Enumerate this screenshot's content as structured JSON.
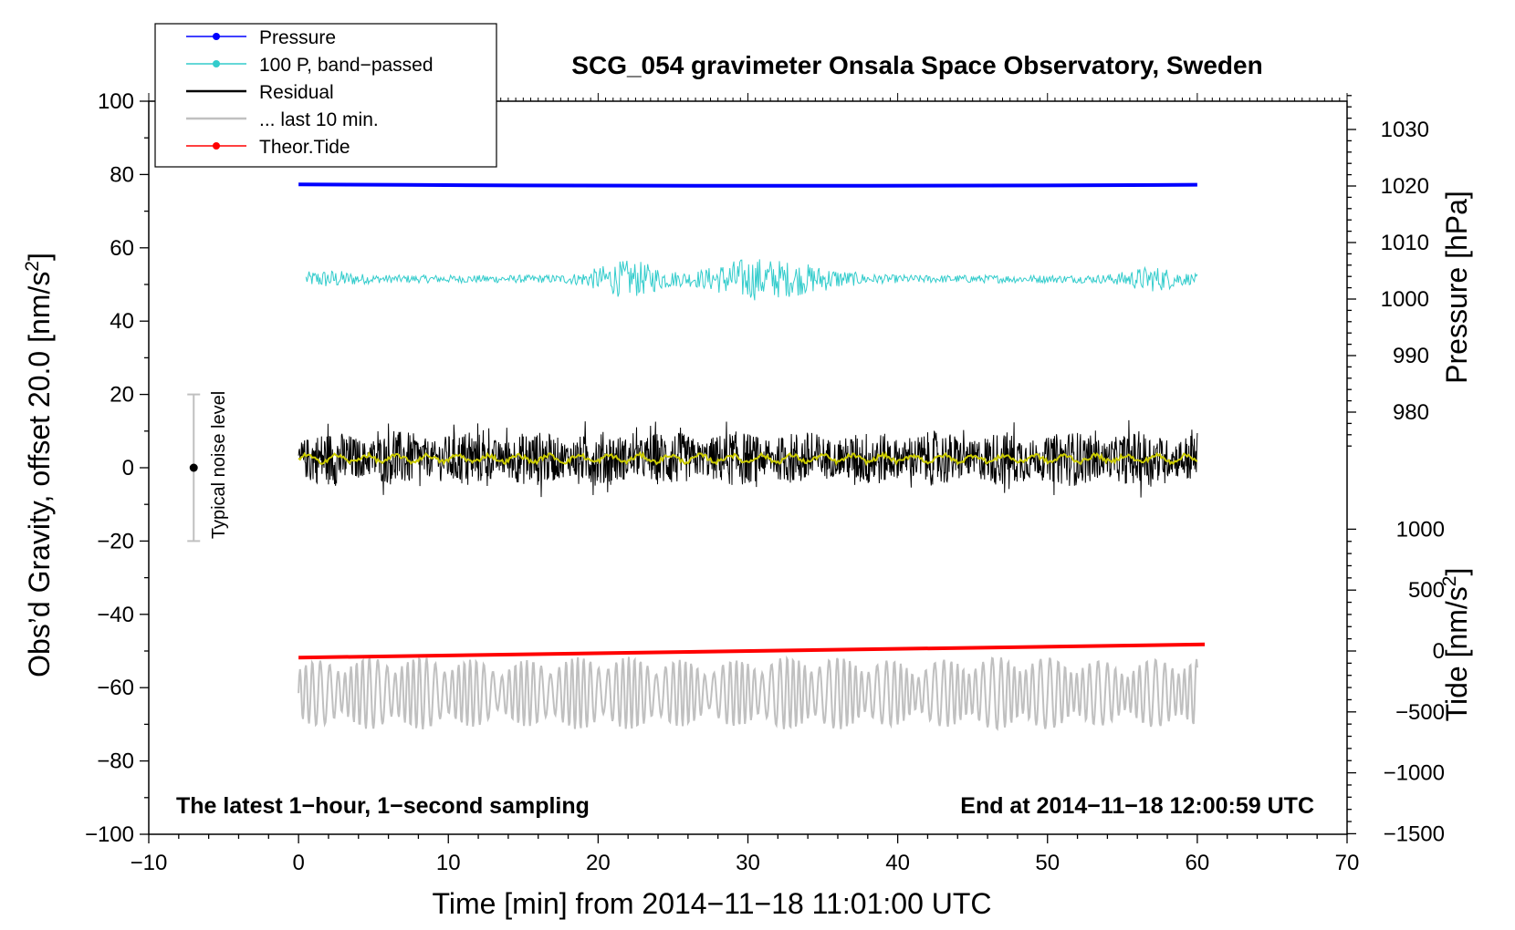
{
  "chart_data": {
    "type": "line",
    "title": "SCG_054 gravimeter Onsala Space Observatory, Sweden",
    "xlabel": "Time [min] from 2014−11−18 11:01:00 UTC",
    "ylabel_main": "Obs’d Gravity, offset 20.0 [nm/s",
    "ylabel_main_sup": "2",
    "ylabel_main_end": "]",
    "ylabel_pressure": "Pressure [hPa]",
    "ylabel_tide": "Tide [nm/s",
    "ylabel_tide_sup": "2",
    "ylabel_tide_end": "]",
    "annotation_left": "The latest 1−hour, 1−second sampling",
    "annotation_right": "End at 2014−11−18 12:00:59 UTC",
    "noise_label": "Typical noise level",
    "noise_level": {
      "x": -7,
      "center": 0,
      "low": -20,
      "high": 20
    },
    "xlim": [
      -10,
      70
    ],
    "ylim": [
      -100,
      100
    ],
    "xticks": [
      -10,
      0,
      10,
      20,
      30,
      40,
      50,
      60,
      70
    ],
    "xtick_labels": [
      "−10",
      "0",
      "10",
      "20",
      "30",
      "40",
      "50",
      "60",
      "70"
    ],
    "yticks": [
      -100,
      -80,
      -60,
      -40,
      -20,
      0,
      20,
      40,
      60,
      80,
      100
    ],
    "ytick_labels": [
      "−100",
      "−80",
      "−60",
      "−40",
      "−20",
      "0",
      "20",
      "40",
      "60",
      "80",
      "100"
    ],
    "pressure_axis": {
      "ticks": [
        980,
        990,
        1000,
        1010,
        1020,
        1030
      ],
      "tick_labels": [
        "980",
        "990",
        "1000",
        "1010",
        "1020",
        "1030"
      ]
    },
    "tide_axis": {
      "ticks": [
        -1500,
        -1000,
        -500,
        0,
        500,
        1000
      ],
      "tick_labels": [
        "−1500",
        "−1000",
        "−500",
        "0",
        "500",
        "1000"
      ]
    },
    "legend_position": "top-left",
    "legend": [
      {
        "label": "Pressure",
        "color": "#0000ff",
        "marker": true
      },
      {
        "label": "100 P, band−passed",
        "color": "#33cccc",
        "marker": true
      },
      {
        "label": "Residual",
        "color": "#000000",
        "marker": false
      },
      {
        "label": "... last 10 min.",
        "color": "#c0c0c0",
        "marker": false
      },
      {
        "label": "Theor.Tide",
        "color": "#ff0000",
        "marker": true
      }
    ],
    "series": [
      {
        "name": "Pressure",
        "color": "#0000ff",
        "x_range": [
          0,
          60
        ],
        "y_start": 77.3,
        "y_end": 77.2,
        "y_mid": 76.9
      },
      {
        "name": "100 P, band−passed",
        "color": "#33cccc",
        "x_range": [
          0.5,
          60
        ],
        "baseline": 51.5,
        "amplitude_max": 7
      },
      {
        "name": "Residual",
        "color": "#000000",
        "x_range": [
          0,
          60
        ],
        "baseline": 2.5,
        "amplitude_max": 11
      },
      {
        "name": "Residual smoothed",
        "color": "#cccc00",
        "x_range": [
          0,
          60
        ],
        "baseline": 2.5,
        "amplitude_max": 1.5
      },
      {
        "name": "... last 10 min.",
        "color": "#c0c0c0",
        "x_range": [
          0,
          60
        ],
        "baseline": -61.5,
        "amplitude_max": 10
      },
      {
        "name": "Theor.Tide",
        "color": "#ff0000",
        "x_range": [
          0,
          60.5
        ],
        "y_start": -51.8,
        "y_end": -48.2
      }
    ]
  }
}
